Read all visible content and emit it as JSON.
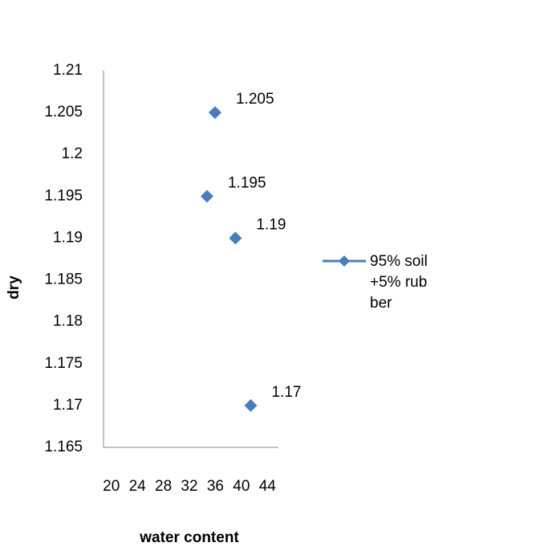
{
  "chart_data": {
    "type": "scatter",
    "x_label": "water content",
    "y_label": "dry",
    "series": [
      {
        "name": "95% soil+5% rubber",
        "color": "#4a7ebb",
        "x": [
          34.2,
          35.3,
          38.1,
          40.2
        ],
        "values": [
          1.195,
          1.205,
          1.19,
          1.17
        ],
        "value_labels": [
          "1.195",
          "1.205",
          "1.19",
          "1.17"
        ]
      }
    ],
    "xlim": [
      20,
      44
    ],
    "xticks": [
      20,
      24,
      28,
      32,
      36,
      40,
      44
    ],
    "ylim": [
      1.165,
      1.21
    ],
    "yticks": [
      1.165,
      1.17,
      1.175,
      1.18,
      1.185,
      1.19,
      1.195,
      1.2,
      1.205,
      1.21
    ],
    "legend": "right"
  }
}
